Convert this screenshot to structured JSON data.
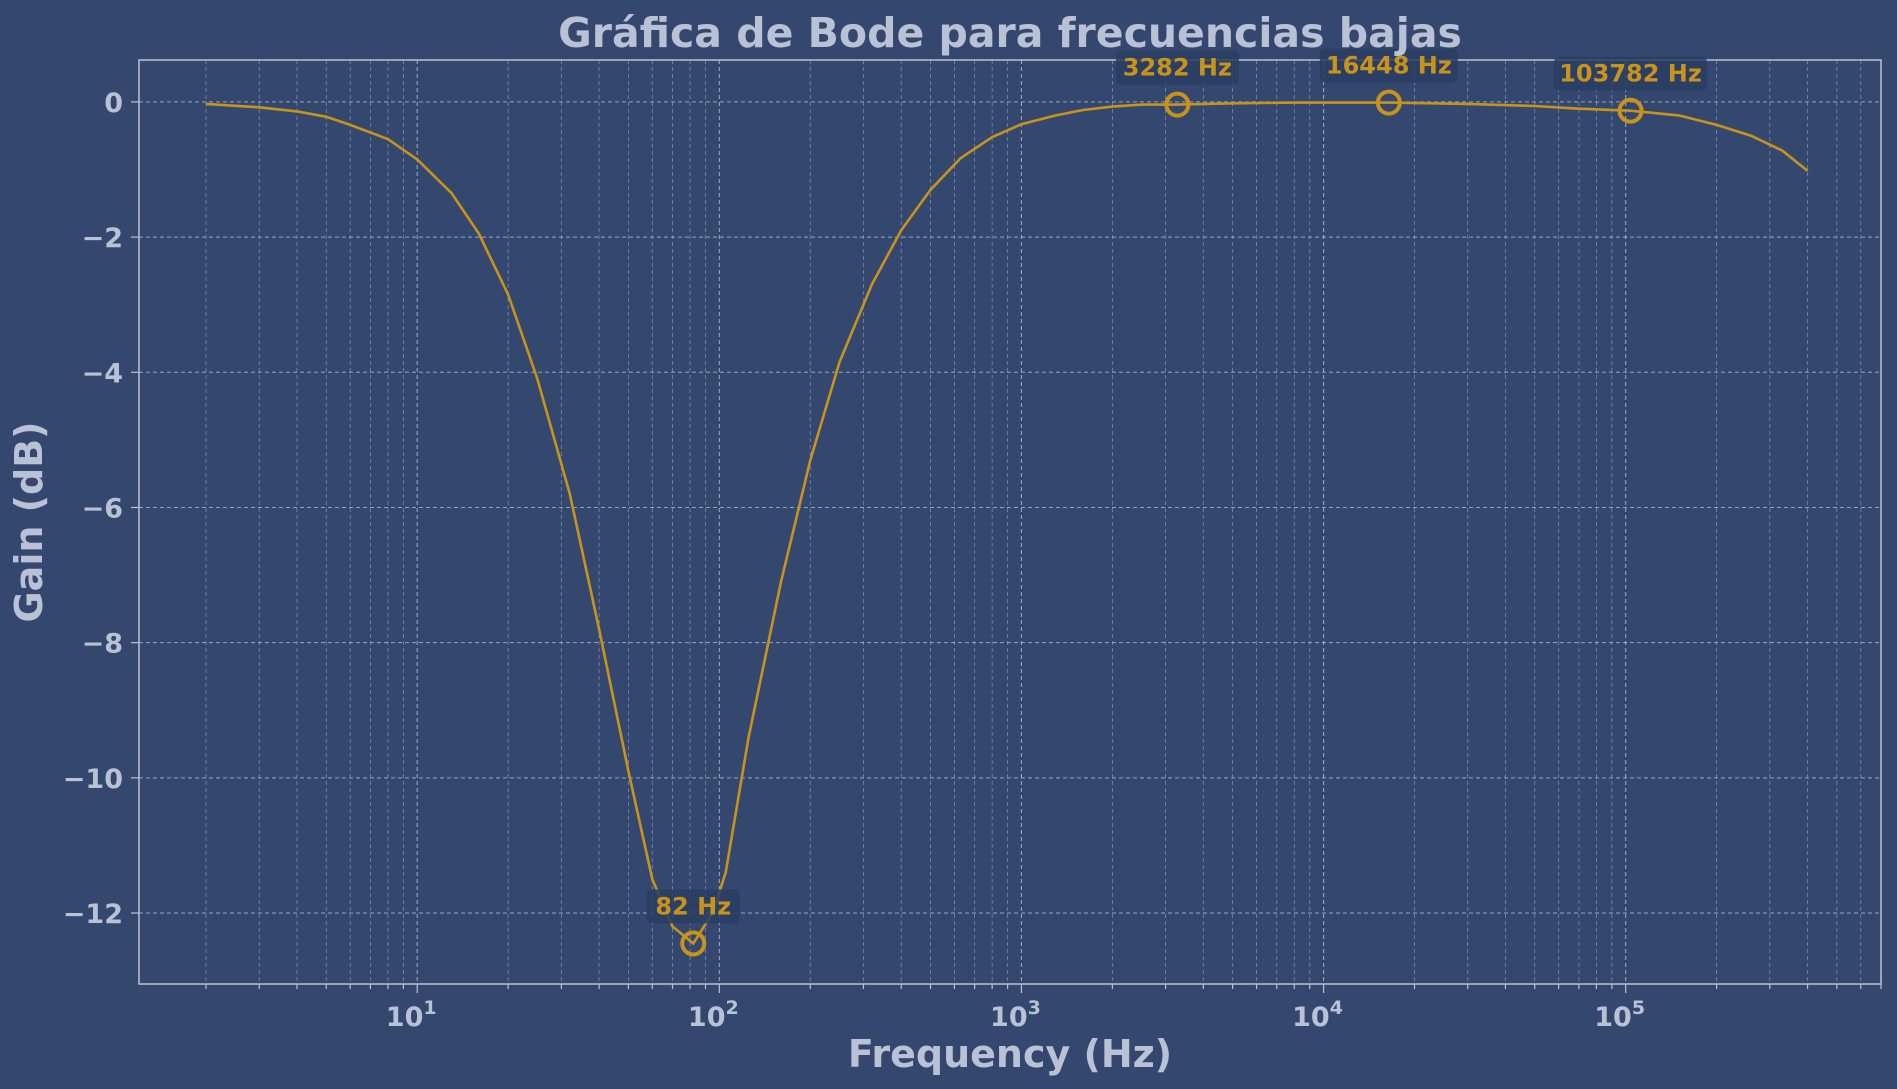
{
  "colors": {
    "background": "#34486f",
    "curve": "#c8931a",
    "text": "#b9c1d4",
    "grid": "#b9c1d4",
    "annotation_box": "#2a3d63"
  },
  "chart_data": {
    "type": "line",
    "title": "Gráfica de Bode para frecuencias bajas",
    "xlabel": "Frequency (Hz)",
    "ylabel": "Gain (dB)",
    "xscale": "log",
    "xlim": [
      1.2,
      700000
    ],
    "ylim": [
      -13.05,
      0.62
    ],
    "grid": true,
    "y_ticks": [
      0,
      -2,
      -4,
      -6,
      -8,
      -10,
      -12
    ],
    "y_tick_labels": [
      "0",
      "−2",
      "−4",
      "−6",
      "−8",
      "−10",
      "−12"
    ],
    "x_ticks": [
      {
        "value": 10,
        "base": "10",
        "exp": "1"
      },
      {
        "value": 100,
        "base": "10",
        "exp": "2"
      },
      {
        "value": 1000,
        "base": "10",
        "exp": "3"
      },
      {
        "value": 10000,
        "base": "10",
        "exp": "4"
      },
      {
        "value": 100000,
        "base": "10",
        "exp": "5"
      }
    ],
    "series": [
      {
        "x": [
          2,
          3,
          4,
          5,
          6,
          8,
          10,
          13,
          16,
          20,
          25,
          32,
          40,
          50,
          60,
          70,
          82,
          95,
          105,
          125,
          160,
          200,
          250,
          320,
          400,
          500,
          630,
          800,
          1000,
          1300,
          1600,
          2000,
          2500,
          3282,
          5000,
          8000,
          16448,
          30000,
          50000,
          70000,
          103782,
          150000,
          200000,
          260000,
          330000,
          400000
        ],
        "y": [
          -0.03,
          -0.08,
          -0.14,
          -0.22,
          -0.34,
          -0.55,
          -0.85,
          -1.35,
          -1.95,
          -2.85,
          -4.1,
          -5.8,
          -7.8,
          -9.9,
          -11.5,
          -12.2,
          -12.45,
          -12.0,
          -11.4,
          -9.4,
          -7.1,
          -5.3,
          -3.85,
          -2.7,
          -1.9,
          -1.3,
          -0.83,
          -0.52,
          -0.33,
          -0.2,
          -0.12,
          -0.07,
          -0.04,
          -0.04,
          -0.02,
          -0.01,
          -0.01,
          -0.03,
          -0.06,
          -0.1,
          -0.13,
          -0.2,
          -0.34,
          -0.5,
          -0.72,
          -1.02
        ]
      }
    ],
    "annotations": [
      {
        "x": 82,
        "y": -12.45,
        "label": "82 Hz",
        "position": "above"
      },
      {
        "x": 3282,
        "y": -0.04,
        "label": "3282 Hz",
        "position": "above"
      },
      {
        "x": 16448,
        "y": -0.01,
        "label": "16448 Hz",
        "position": "above"
      },
      {
        "x": 103782,
        "y": -0.13,
        "label": "103782 Hz",
        "position": "above"
      }
    ]
  }
}
